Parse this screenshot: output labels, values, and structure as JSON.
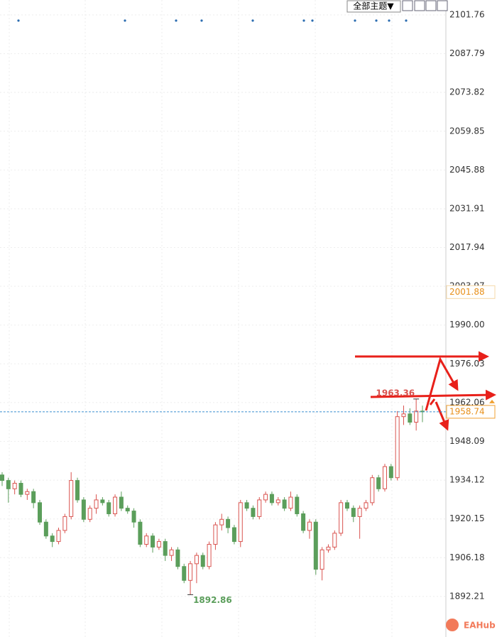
{
  "chart_data": {
    "type": "candlestick",
    "toolbar_label": "全部主题▼",
    "watermark": "EAHub",
    "ylim": [
      1877.6,
      2107.13
    ],
    "yticks": [
      2101.76,
      2087.79,
      2073.82,
      2059.85,
      2045.88,
      2031.91,
      2017.94,
      2003.97,
      {
        "value": 1990,
        "label": "1990.00"
      },
      1976.03,
      1962.06,
      1948.09,
      1934.12,
      1920.15,
      1906.18,
      1892.21
    ],
    "reference_price": 2001.88,
    "current_price": 1958.74,
    "max_label": 1963.36,
    "min_label": 1892.86,
    "up_color": "#d9534f",
    "down_color": "#5b9e5b",
    "open": [
      1936,
      1934,
      1931,
      1933,
      1929,
      1930,
      1926,
      1919,
      1914,
      1912,
      1916,
      1921,
      1934,
      1927,
      1920,
      1924,
      1927,
      1926,
      1922,
      1928,
      1924,
      1923,
      1919,
      1911,
      1914,
      1910,
      1912,
      1907,
      1909,
      1903,
      1898,
      1904,
      1907,
      1903,
      1911,
      1918,
      1920,
      1917,
      1912,
      1926,
      1924,
      1921,
      1927,
      1929,
      1926,
      1927,
      1924,
      1928,
      1922,
      1916,
      1919,
      1902,
      1909,
      1910,
      1915,
      1926,
      1924,
      1921,
      1924,
      1926,
      1935,
      1931,
      1939,
      1935,
      1957,
      1958,
      1955,
      1959
    ],
    "high": [
      1937,
      1935,
      1934,
      1934,
      1931,
      1931,
      1927,
      1920,
      1915,
      1917,
      1922,
      1937,
      1935,
      1928,
      1925,
      1929,
      1928,
      1927,
      1929,
      1930,
      1925,
      1924,
      1920,
      1915,
      1915,
      1913,
      1913,
      1910,
      1910,
      1904,
      1905,
      1908,
      1908,
      1912,
      1919,
      1922,
      1921,
      1918,
      1927,
      1927,
      1925,
      1928,
      1930,
      1930,
      1928,
      1928,
      1930,
      1929,
      1923,
      1920,
      1920,
      1910,
      1911,
      1916,
      1927,
      1927,
      1925,
      1925,
      1927,
      1936,
      1936,
      1940,
      1940,
      1959,
      1961,
      1960,
      1963.36,
      1961
    ],
    "low": [
      1932,
      1926,
      1929,
      1928,
      1927,
      1924,
      1918,
      1913,
      1910,
      1911,
      1915,
      1920,
      1926,
      1919,
      1919,
      1922,
      1925,
      1921,
      1921,
      1923,
      1922,
      1917,
      1910,
      1910,
      1908,
      1909,
      1905,
      1905,
      1902,
      1897,
      1892.86,
      1897,
      1902,
      1902,
      1909,
      1916,
      1915,
      1911,
      1910,
      1923,
      1920,
      1920,
      1926,
      1925,
      1925,
      1923,
      1923,
      1921,
      1915,
      1913,
      1900,
      1898,
      1908,
      1909,
      1914,
      1923,
      1919,
      1913,
      1923,
      1925,
      1930,
      1930,
      1934,
      1934,
      1954,
      1954,
      1952,
      1955
    ],
    "close": [
      1934,
      1931,
      1933,
      1929,
      1930,
      1926,
      1919,
      1914,
      1912,
      1916,
      1921,
      1934,
      1927,
      1920,
      1924,
      1927,
      1926,
      1922,
      1928,
      1924,
      1923,
      1919,
      1911,
      1914,
      1910,
      1912,
      1907,
      1909,
      1903,
      1898,
      1904,
      1907,
      1903,
      1911,
      1918,
      1920,
      1917,
      1912,
      1926,
      1924,
      1921,
      1927,
      1929,
      1926,
      1927,
      1924,
      1928,
      1922,
      1916,
      1919,
      1902,
      1909,
      1910,
      1915,
      1926,
      1924,
      1921,
      1924,
      1926,
      1935,
      1931,
      1939,
      1935,
      1957,
      1958,
      1955,
      1959,
      1958.74
    ]
  }
}
